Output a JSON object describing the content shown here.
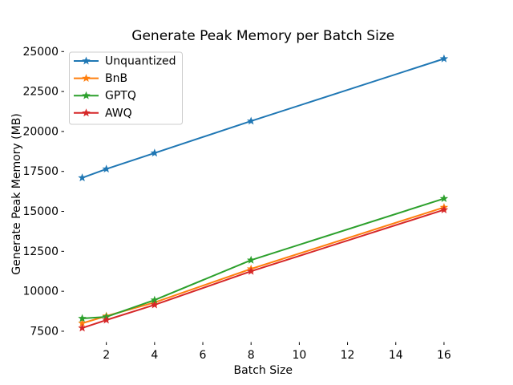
{
  "chart_data": {
    "type": "line",
    "title": "Generate Peak Memory per Batch Size",
    "xlabel": "Batch Size",
    "ylabel": "Generate Peak Memory (MB)",
    "x": [
      1,
      2,
      4,
      8,
      16
    ],
    "series": [
      {
        "name": "Unquantized",
        "color": "#1f77b4",
        "values": [
          17100,
          17650,
          18650,
          20650,
          24550
        ]
      },
      {
        "name": "BnB",
        "color": "#ff7f0e",
        "values": [
          8000,
          8450,
          9300,
          11400,
          15250
        ]
      },
      {
        "name": "GPTQ",
        "color": "#2ca02c",
        "values": [
          8300,
          8400,
          9450,
          11950,
          15800
        ]
      },
      {
        "name": "AWQ",
        "color": "#d62728",
        "values": [
          7700,
          8200,
          9150,
          11250,
          15100
        ]
      }
    ],
    "xticks": [
      2,
      4,
      6,
      8,
      10,
      12,
      14,
      16
    ],
    "yticks": [
      7500,
      10000,
      12500,
      15000,
      17500,
      20000,
      22500,
      25000
    ],
    "xlim": [
      0.25,
      16.75
    ],
    "ylim": [
      6820,
      25340
    ],
    "marker": "star",
    "grid": false,
    "legend": {
      "position": "upper-left",
      "entries": [
        "Unquantized",
        "BnB",
        "GPTQ",
        "AWQ"
      ]
    },
    "colors": {
      "background": "#ffffff",
      "spine": "#000000",
      "legend_border": "#cccccc"
    }
  }
}
